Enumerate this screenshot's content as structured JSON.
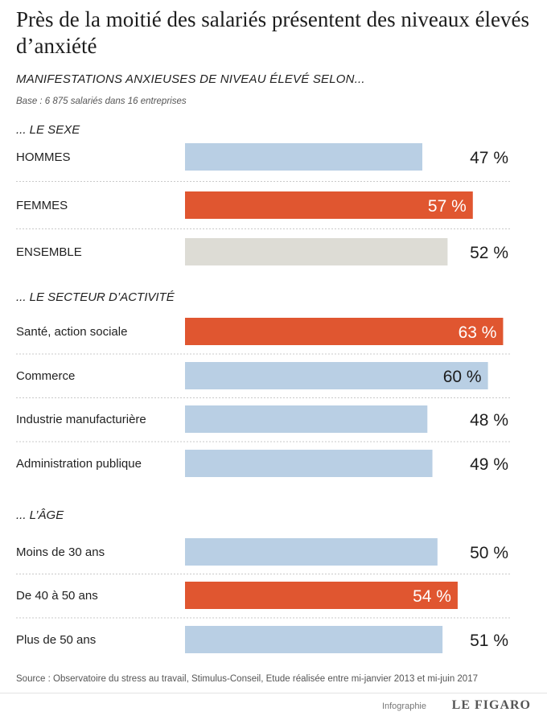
{
  "title": "Près de la moitié des salariés présentent des niveaux élevés d’anxiété",
  "subtitle": "MANIFESTATIONS ANXIEUSES DE NIVEAU ÉLEVÉ SELON...",
  "base": "Base : 6 875 salariés dans 16 entreprises",
  "source": "Source : Observatoire du stress au travail, Stimulus-Conseil, Etude réalisée entre mi-janvier 2013 et mi-juin 2017",
  "credit": {
    "label": "Infographie",
    "brand": "LE FIGARO"
  },
  "colors": {
    "blue": "#b9cfe4",
    "orange": "#e05630",
    "grey": "#dddcd5",
    "divider": "#c9c9c9"
  },
  "chart_data": {
    "type": "bar",
    "orientation": "horizontal",
    "unit": "%",
    "xlim": [
      0,
      65
    ],
    "groups": [
      {
        "label": "... LE SEXE",
        "items": [
          {
            "category": "HOMMES",
            "value": 47,
            "value_label": "47 %",
            "color": "blue"
          },
          {
            "category": "FEMMES",
            "value": 57,
            "value_label": "57 %",
            "color": "orange"
          },
          {
            "category": "ENSEMBLE",
            "value": 52,
            "value_label": "52 %",
            "color": "grey"
          }
        ]
      },
      {
        "label": "... LE SECTEUR D’ACTIVITÉ",
        "items": [
          {
            "category": "Santé, action sociale",
            "value": 63,
            "value_label": "63 %",
            "color": "orange"
          },
          {
            "category": "Commerce",
            "value": 60,
            "value_label": "60 %",
            "color": "blue"
          },
          {
            "category": "Industrie manufacturière",
            "value": 48,
            "value_label": "48 %",
            "color": "blue"
          },
          {
            "category": "Administration publique",
            "value": 49,
            "value_label": "49 %",
            "color": "blue"
          }
        ]
      },
      {
        "label": "... L’ÂGE",
        "items": [
          {
            "category": "Moins de 30 ans",
            "value": 50,
            "value_label": "50 %",
            "color": "blue"
          },
          {
            "category": "De 40 à 50 ans",
            "value": 54,
            "value_label": "54 %",
            "color": "orange"
          },
          {
            "category": "Plus de 50 ans",
            "value": 51,
            "value_label": "51 %",
            "color": "blue"
          }
        ]
      }
    ]
  }
}
